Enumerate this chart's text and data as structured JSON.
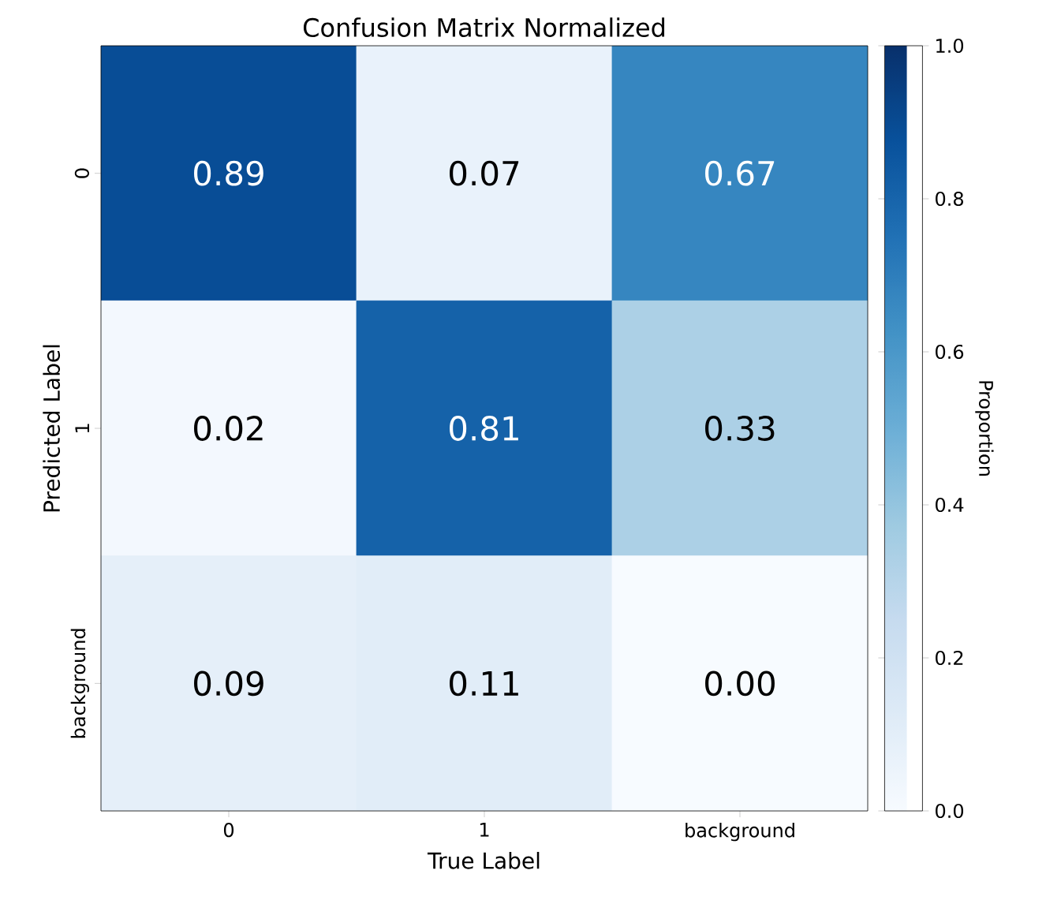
{
  "chart_data": {
    "type": "heatmap",
    "title": "Confusion Matrix Normalized",
    "xlabel": "True Label",
    "ylabel": "Predicted Label",
    "clabel": "Proportion",
    "categories": [
      "0",
      "1",
      "background"
    ],
    "y_categories": [
      "0",
      "1",
      "background"
    ],
    "cells": [
      [
        0.89,
        0.07,
        0.67
      ],
      [
        0.02,
        0.81,
        0.33
      ],
      [
        0.09,
        0.11,
        0.0
      ]
    ],
    "cell_labels": [
      [
        "0.89",
        "0.07",
        "0.67"
      ],
      [
        "0.02",
        "0.81",
        "0.33"
      ],
      [
        "0.09",
        "0.11",
        "0.00"
      ]
    ],
    "clim": [
      0,
      1
    ],
    "cticks": [
      {
        "value": 0,
        "label": "0.0"
      },
      {
        "value": 0.2,
        "label": "0.2"
      },
      {
        "value": 0.4,
        "label": "0.4"
      },
      {
        "value": 0.6,
        "label": "0.6"
      },
      {
        "value": 0.8,
        "label": "0.8"
      },
      {
        "value": 1,
        "label": "1.0"
      }
    ]
  }
}
